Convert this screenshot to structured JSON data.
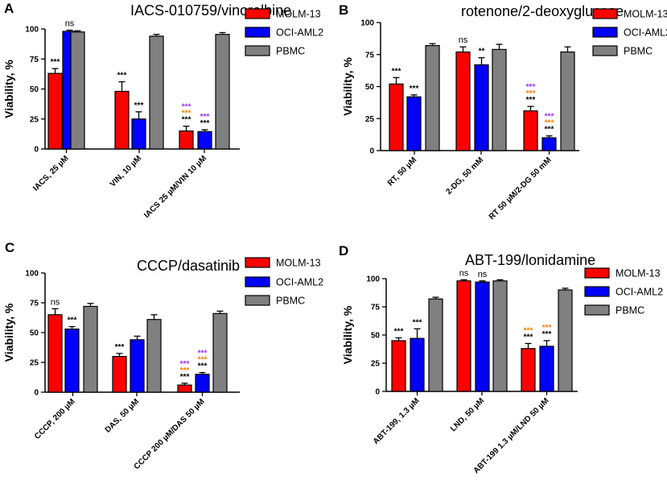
{
  "colors": {
    "MOLM-13": "#ff0000",
    "OCI-AML2": "#0000ff",
    "PBMC": "#808080",
    "black": "#000000",
    "orange": "#ff8000",
    "purple": "#9933ff"
  },
  "legend": [
    "MOLM-13",
    "OCI-AML2",
    "PBMC"
  ],
  "chart_data": [
    {
      "letter": "A",
      "type": "bar",
      "title": "IACS-010759/vinorelbine",
      "ylabel": "Viability, %",
      "ylim": [
        0,
        100
      ],
      "yticks": [
        "0",
        "25",
        "50",
        "75",
        "100"
      ],
      "categories": [
        "IACS, 25 µM",
        "VIN, 10 µM",
        "IACS 25 µM/VIN 10 µM"
      ],
      "series": [
        {
          "name": "MOLM-13",
          "values": [
            63,
            48,
            15
          ],
          "errors": [
            4,
            8,
            4
          ],
          "sig": [
            [
              "black"
            ],
            [
              "black"
            ],
            [
              "purple",
              "orange",
              "black"
            ]
          ]
        },
        {
          "name": "OCI-AML2",
          "values": [
            98,
            25,
            14.5
          ],
          "errors": [
            1,
            6,
            1.5
          ],
          "sig": [
            [
              "ns"
            ],
            [
              "black"
            ],
            [
              "purple",
              "black"
            ]
          ]
        },
        {
          "name": "PBMC",
          "values": [
            97.5,
            94,
            95.5
          ],
          "errors": [
            1,
            1.5,
            1.5
          ],
          "sig": [
            [],
            [],
            []
          ]
        }
      ]
    },
    {
      "letter": "B",
      "type": "bar",
      "title": "rotenone/2-deoxyglucose",
      "ylabel": "Viability, %",
      "ylim": [
        0,
        100
      ],
      "yticks": [
        "0",
        "25",
        "50",
        "75",
        "100"
      ],
      "categories": [
        "RT, 50 µM",
        "2-DG, 50 mM",
        "RT 50 µM/2-DG 50 mM"
      ],
      "series": [
        {
          "name": "MOLM-13",
          "values": [
            52,
            77,
            31
          ],
          "errors": [
            5,
            4,
            3.5
          ],
          "sig": [
            [
              "black"
            ],
            [
              "ns"
            ],
            [
              "purple",
              "orange",
              "black"
            ]
          ]
        },
        {
          "name": "OCI-AML2",
          "values": [
            42,
            67,
            10
          ],
          "errors": [
            1.5,
            5.5,
            1.5
          ],
          "sig": [
            [
              "black"
            ],
            [
              "black2"
            ],
            [
              "purple",
              "orange",
              "black"
            ]
          ]
        },
        {
          "name": "PBMC",
          "values": [
            82,
            79,
            77
          ],
          "errors": [
            1.5,
            4,
            4
          ],
          "sig": [
            [],
            [],
            []
          ]
        }
      ]
    },
    {
      "letter": "C",
      "type": "bar",
      "title": "CCCP/dasatinib",
      "ylabel": "Viability, %",
      "ylim": [
        0,
        100
      ],
      "yticks": [
        "0",
        "25",
        "50",
        "75",
        "100"
      ],
      "categories": [
        "CCCP, 200 µM",
        "DAS, 50 µM",
        "CCCP 200 µM/DAS 50 µM"
      ],
      "series": [
        {
          "name": "MOLM-13",
          "values": [
            65,
            30,
            6
          ],
          "errors": [
            5,
            2.5,
            1.5
          ],
          "sig": [
            [
              "ns"
            ],
            [
              "black"
            ],
            [
              "purple",
              "orange",
              "black"
            ]
          ]
        },
        {
          "name": "OCI-AML2",
          "values": [
            53,
            44,
            15
          ],
          "errors": [
            2,
            3,
            1.5
          ],
          "sig": [
            [
              "black"
            ],
            [],
            [
              "purple",
              "orange",
              "black"
            ]
          ]
        },
        {
          "name": "PBMC",
          "values": [
            72,
            61,
            66
          ],
          "errors": [
            2.5,
            4,
            2
          ],
          "sig": [
            [],
            [],
            []
          ]
        }
      ]
    },
    {
      "letter": "D",
      "type": "bar",
      "title": "ABT-199/lonidamine",
      "ylabel": "Viability, %",
      "ylim": [
        0,
        100
      ],
      "yticks": [
        "0",
        "25",
        "50",
        "75",
        "100"
      ],
      "categories": [
        "ABT-199, 1.3 µM",
        "LND, 50 µM",
        "ABT-199 1.3 µM/LND 50 µM"
      ],
      "series": [
        {
          "name": "MOLM-13",
          "values": [
            45,
            98,
            38
          ],
          "errors": [
            2.5,
            1,
            4.5
          ],
          "sig": [
            [
              "black"
            ],
            [
              "ns"
            ],
            [
              "orange",
              "black"
            ]
          ]
        },
        {
          "name": "OCI-AML2",
          "values": [
            47,
            97,
            40
          ],
          "errors": [
            8.5,
            1,
            5
          ],
          "sig": [
            [
              "black"
            ],
            [
              "ns"
            ],
            [
              "orange",
              "black"
            ]
          ]
        },
        {
          "name": "PBMC",
          "values": [
            82,
            98,
            90
          ],
          "errors": [
            1.5,
            1,
            1.5
          ],
          "sig": [
            [],
            [],
            []
          ]
        }
      ]
    }
  ],
  "sig_text": {
    "stars3": "***",
    "stars2": "**",
    "ns": "ns"
  }
}
